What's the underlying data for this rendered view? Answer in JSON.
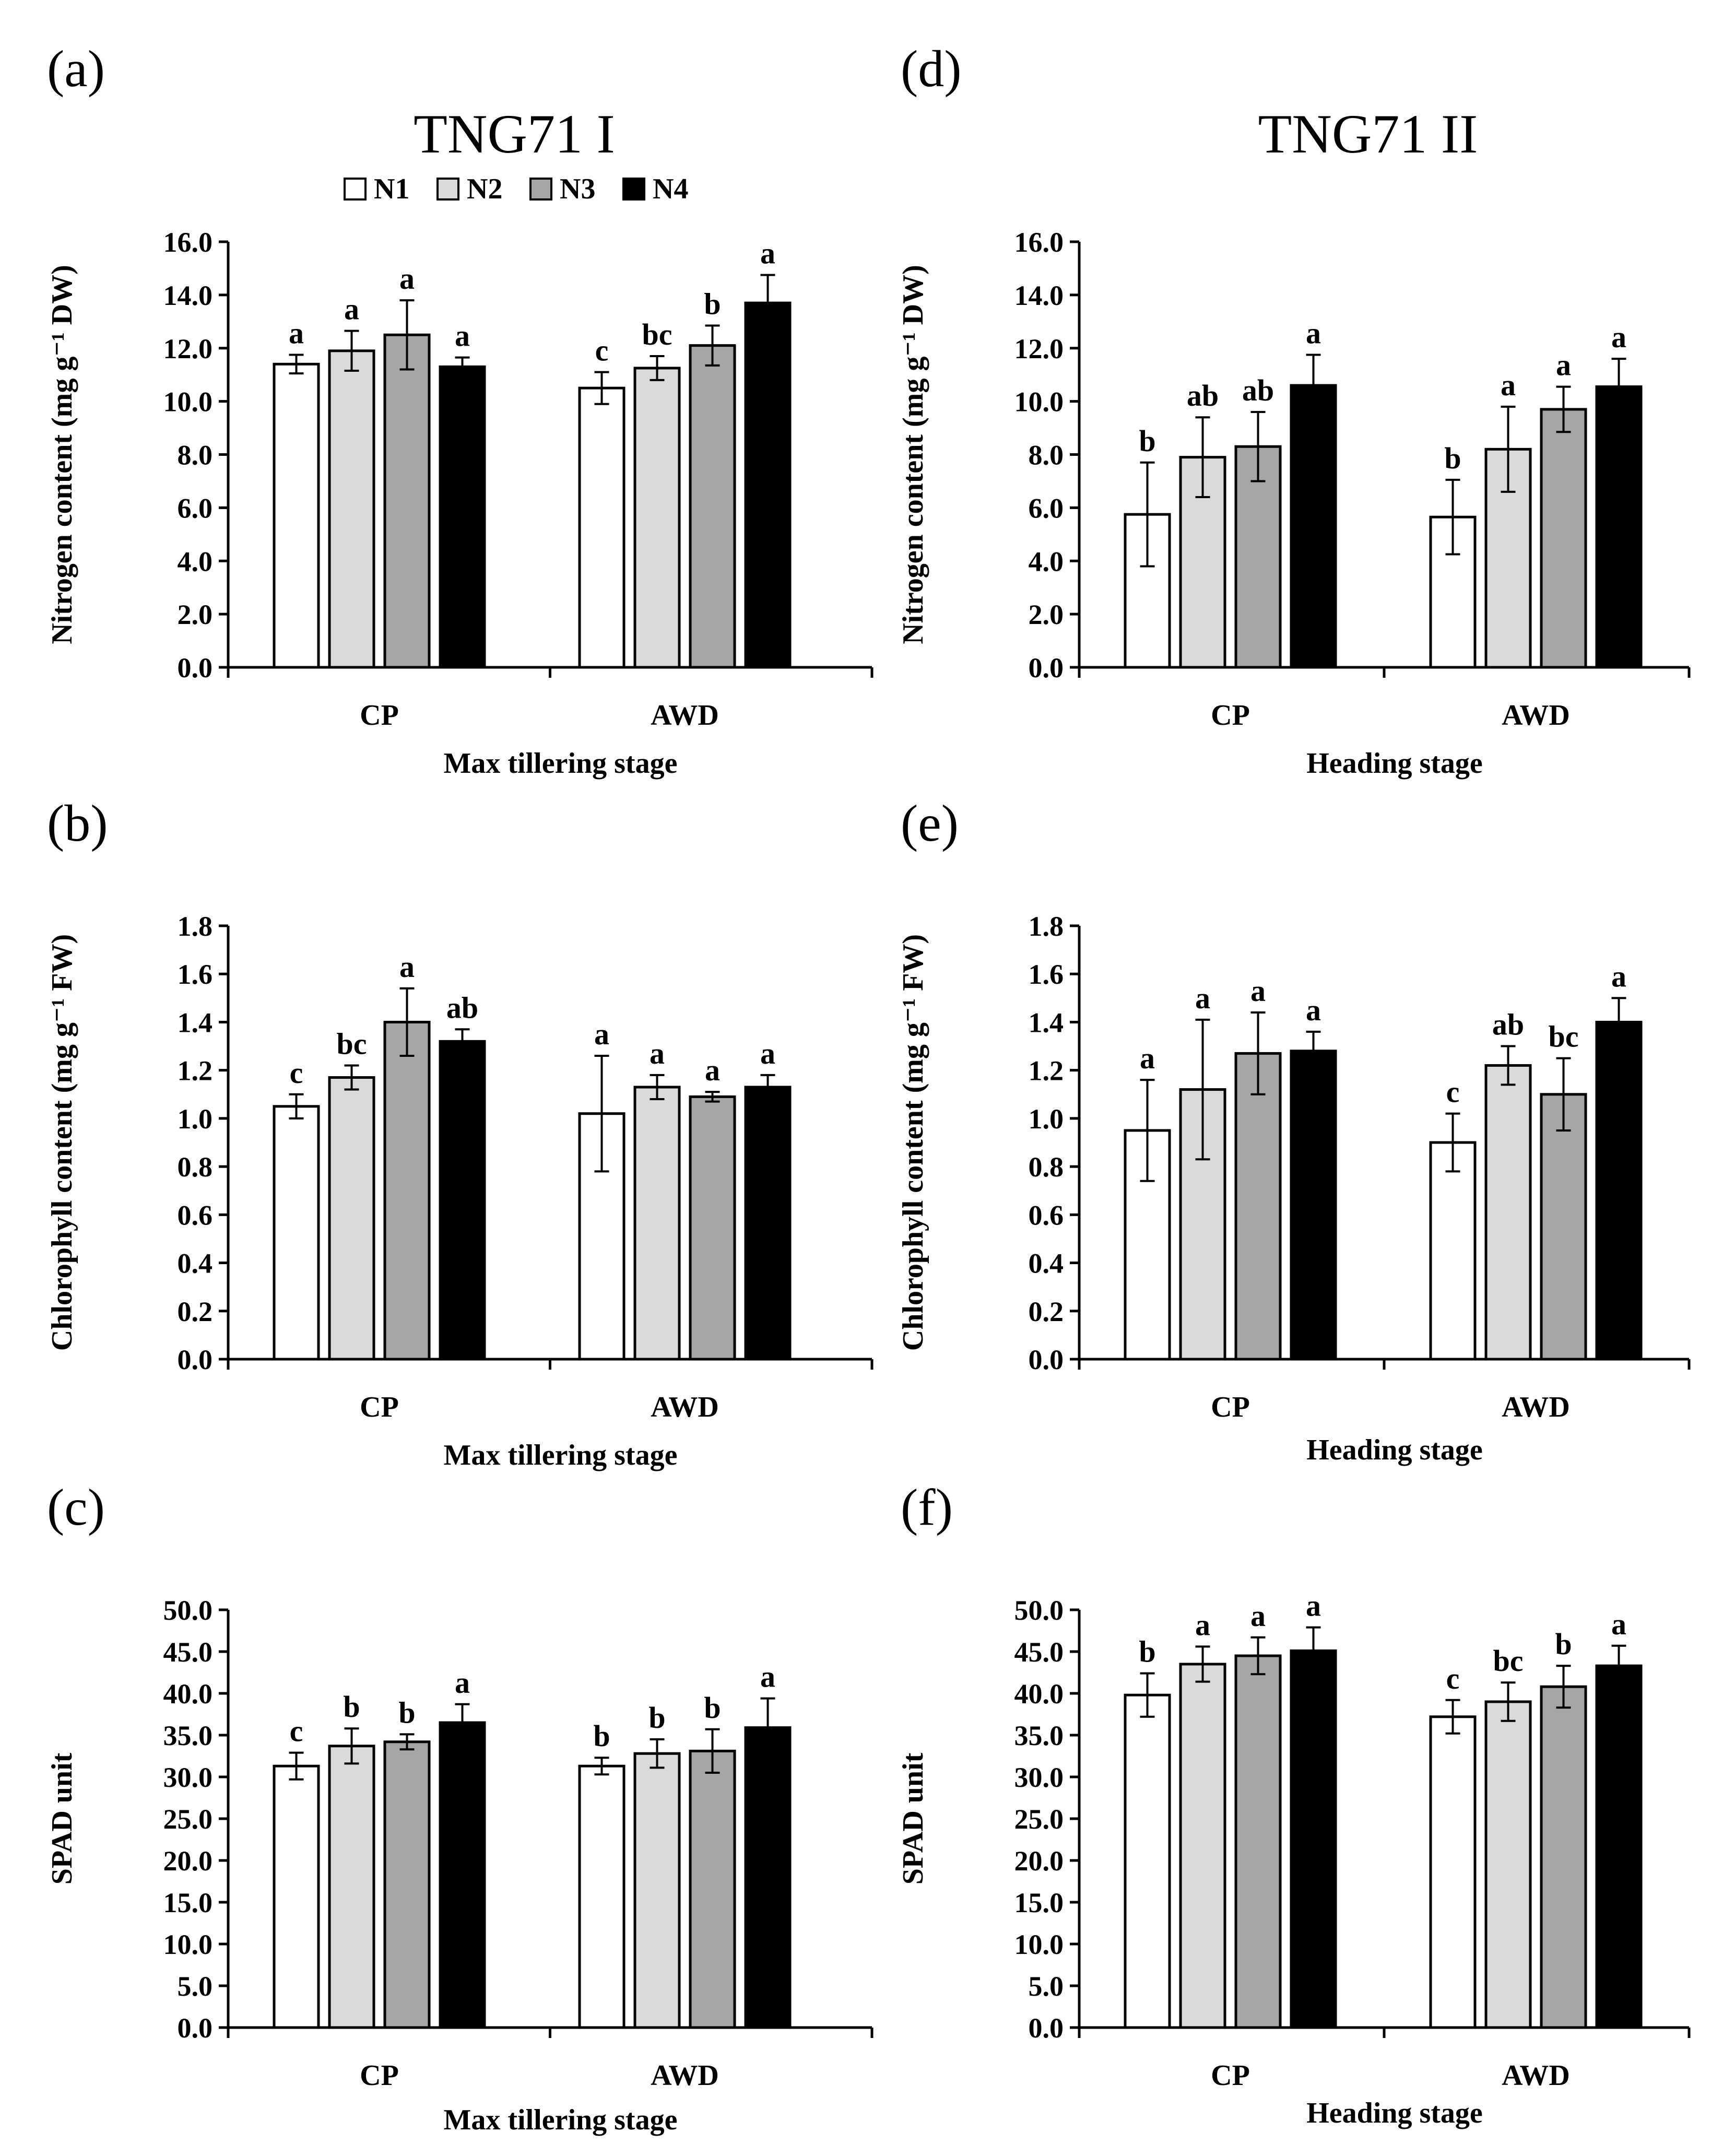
{
  "figure": {
    "columns": [
      {
        "title": "TNG71 I"
      },
      {
        "title": "TNG71 II"
      }
    ],
    "legend": [
      "N1",
      "N2",
      "N3",
      "N4"
    ]
  },
  "colors": {
    "N1": "#ffffff",
    "N2": "#dadada",
    "N3": "#a6a6a6",
    "N4": "#000000",
    "axis": "#000000"
  },
  "chart_data": [
    {
      "panel": "(a)",
      "type": "bar",
      "xlabel": "Max tillering stage",
      "ylabel": "Nitrogen content (mg g⁻¹ DW)",
      "ylim": [
        0,
        16
      ],
      "ystep": 2,
      "decimals": 1,
      "categories": [
        "CP",
        "AWD"
      ],
      "series": [
        {
          "name": "N1",
          "values": [
            11.4,
            10.5
          ],
          "errors": [
            0.35,
            0.6
          ],
          "letters": [
            "a",
            "c"
          ]
        },
        {
          "name": "N2",
          "values": [
            11.9,
            11.25
          ],
          "errors": [
            0.75,
            0.45
          ],
          "letters": [
            "a",
            "bc"
          ]
        },
        {
          "name": "N3",
          "values": [
            12.5,
            12.1
          ],
          "errors": [
            1.3,
            0.75
          ],
          "letters": [
            "a",
            "b"
          ]
        },
        {
          "name": "N4",
          "values": [
            11.3,
            13.7
          ],
          "errors": [
            0.35,
            1.05
          ],
          "letters": [
            "a",
            "a"
          ]
        }
      ]
    },
    {
      "panel": "(b)",
      "type": "bar",
      "xlabel": "Max tillering stage",
      "ylabel": "Chlorophyll content (mg g⁻¹ FW)",
      "ylim": [
        0,
        1.8
      ],
      "ystep": 0.2,
      "decimals": 1,
      "categories": [
        "CP",
        "AWD"
      ],
      "series": [
        {
          "name": "N1",
          "values": [
            1.05,
            1.02
          ],
          "errors": [
            0.05,
            0.24
          ],
          "letters": [
            "c",
            "a"
          ]
        },
        {
          "name": "N2",
          "values": [
            1.17,
            1.13
          ],
          "errors": [
            0.05,
            0.05
          ],
          "letters": [
            "bc",
            "a"
          ]
        },
        {
          "name": "N3",
          "values": [
            1.4,
            1.09
          ],
          "errors": [
            0.14,
            0.02
          ],
          "letters": [
            "a",
            "a"
          ]
        },
        {
          "name": "N4",
          "values": [
            1.32,
            1.13
          ],
          "errors": [
            0.05,
            0.05
          ],
          "letters": [
            "ab",
            "a"
          ]
        }
      ]
    },
    {
      "panel": "(c)",
      "type": "bar",
      "xlabel": "Max tillering stage",
      "ylabel": "SPAD unit",
      "ylim": [
        0,
        50
      ],
      "ystep": 5,
      "decimals": 1,
      "categories": [
        "CP",
        "AWD"
      ],
      "series": [
        {
          "name": "N1",
          "values": [
            31.3,
            31.3
          ],
          "errors": [
            1.6,
            1.0
          ],
          "letters": [
            "c",
            "b"
          ]
        },
        {
          "name": "N2",
          "values": [
            33.7,
            32.8
          ],
          "errors": [
            2.1,
            1.7
          ],
          "letters": [
            "b",
            "b"
          ]
        },
        {
          "name": "N3",
          "values": [
            34.2,
            33.1
          ],
          "errors": [
            0.9,
            2.6
          ],
          "letters": [
            "b",
            "b"
          ]
        },
        {
          "name": "N4",
          "values": [
            36.5,
            35.9
          ],
          "errors": [
            2.2,
            3.5
          ],
          "letters": [
            "a",
            "a"
          ]
        }
      ]
    },
    {
      "panel": "(d)",
      "type": "bar",
      "xlabel": "Heading stage",
      "ylabel": "Nitrogen content (mg g⁻¹ DW)",
      "ylim": [
        0,
        16
      ],
      "ystep": 2,
      "decimals": 1,
      "categories": [
        "CP",
        "AWD"
      ],
      "series": [
        {
          "name": "N1",
          "values": [
            5.75,
            5.65
          ],
          "errors": [
            1.95,
            1.4
          ],
          "letters": [
            "b",
            "b"
          ]
        },
        {
          "name": "N2",
          "values": [
            7.9,
            8.2
          ],
          "errors": [
            1.5,
            1.6
          ],
          "letters": [
            "ab",
            "a"
          ]
        },
        {
          "name": "N3",
          "values": [
            8.3,
            9.7
          ],
          "errors": [
            1.3,
            0.85
          ],
          "letters": [
            "ab",
            "a"
          ]
        },
        {
          "name": "N4",
          "values": [
            10.6,
            10.55
          ],
          "errors": [
            1.15,
            1.05
          ],
          "letters": [
            "a",
            "a"
          ]
        }
      ]
    },
    {
      "panel": "(e)",
      "type": "bar",
      "xlabel": "Heading stage",
      "ylabel": "Chlorophyll content (mg g⁻¹ FW)",
      "ylim": [
        0,
        1.8
      ],
      "ystep": 0.2,
      "decimals": 1,
      "categories": [
        "CP",
        "AWD"
      ],
      "series": [
        {
          "name": "N1",
          "values": [
            0.95,
            0.9
          ],
          "errors": [
            0.21,
            0.12
          ],
          "letters": [
            "a",
            "c"
          ]
        },
        {
          "name": "N2",
          "values": [
            1.12,
            1.22
          ],
          "errors": [
            0.29,
            0.08
          ],
          "letters": [
            "a",
            "ab"
          ]
        },
        {
          "name": "N3",
          "values": [
            1.27,
            1.1
          ],
          "errors": [
            0.17,
            0.15
          ],
          "letters": [
            "a",
            "bc"
          ]
        },
        {
          "name": "N4",
          "values": [
            1.28,
            1.4
          ],
          "errors": [
            0.08,
            0.1
          ],
          "letters": [
            "a",
            "a"
          ]
        }
      ]
    },
    {
      "panel": "(f)",
      "type": "bar",
      "xlabel": "Heading stage",
      "ylabel": "SPAD unit",
      "ylim": [
        0,
        50
      ],
      "ystep": 5,
      "decimals": 1,
      "categories": [
        "CP",
        "AWD"
      ],
      "series": [
        {
          "name": "N1",
          "values": [
            39.8,
            37.2
          ],
          "errors": [
            2.6,
            2.0
          ],
          "letters": [
            "b",
            "c"
          ]
        },
        {
          "name": "N2",
          "values": [
            43.5,
            39.0
          ],
          "errors": [
            2.1,
            2.3
          ],
          "letters": [
            "a",
            "bc"
          ]
        },
        {
          "name": "N3",
          "values": [
            44.5,
            40.8
          ],
          "errors": [
            2.2,
            2.5
          ],
          "letters": [
            "a",
            "b"
          ]
        },
        {
          "name": "N4",
          "values": [
            45.1,
            43.3
          ],
          "errors": [
            2.8,
            2.4
          ],
          "letters": [
            "a",
            "a"
          ]
        }
      ]
    }
  ]
}
